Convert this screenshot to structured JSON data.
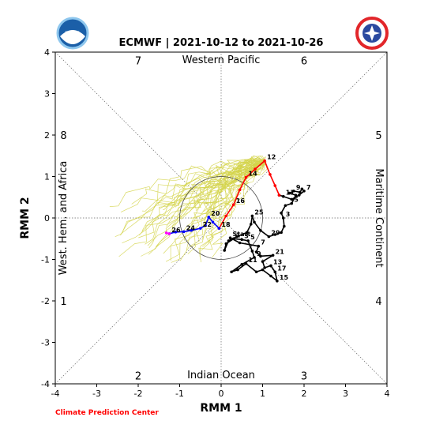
{
  "chart_data": {
    "type": "line",
    "title": "ECMWF | 2021-10-12 to 2021-10-26",
    "xlabel": "RMM 1",
    "ylabel": "RMM 2",
    "xlim": [
      -4,
      4
    ],
    "ylim": [
      -4,
      4
    ],
    "ticks": [
      "-4",
      "-3",
      "-2",
      "-1",
      "0",
      "1",
      "2",
      "3",
      "4"
    ],
    "regions": {
      "top": "Western Pacific",
      "bottom": "Indian Ocean",
      "left": "West. Hem. and Africa",
      "right": "Maritime Continent"
    },
    "phases": [
      {
        "label": "7",
        "x": -2,
        "y": 3.8
      },
      {
        "label": "6",
        "x": 2,
        "y": 3.8
      },
      {
        "label": "8",
        "x": -3.8,
        "y": 2
      },
      {
        "label": "5",
        "x": 3.8,
        "y": 2
      },
      {
        "label": "1",
        "x": -3.8,
        "y": -2
      },
      {
        "label": "4",
        "x": 3.8,
        "y": -2
      },
      {
        "label": "2",
        "x": -2,
        "y": -3.8
      },
      {
        "label": "3",
        "x": 2,
        "y": -3.8
      }
    ],
    "unit_circle_radius": 1,
    "credit": "Climate Prediction Center",
    "series": [
      {
        "color": "#000000",
        "points": [
          {
            "x": 0.22,
            "y": -0.48,
            "label": "Start"
          },
          {
            "x": 0.45,
            "y": -0.6
          },
          {
            "x": 0.9,
            "y": -0.68,
            "label": "7"
          },
          {
            "x": 0.85,
            "y": -0.82
          },
          {
            "x": 0.95,
            "y": -0.92
          },
          {
            "x": 1.25,
            "y": -0.9,
            "label": "21"
          },
          {
            "x": 1.0,
            "y": -1.05
          },
          {
            "x": 1.05,
            "y": -1.2
          },
          {
            "x": 1.2,
            "y": -1.15,
            "label": "13"
          },
          {
            "x": 1.3,
            "y": -1.3,
            "label": "17"
          },
          {
            "x": 1.35,
            "y": -1.52,
            "label": "15"
          },
          {
            "x": 1.2,
            "y": -1.4
          },
          {
            "x": 1.0,
            "y": -1.25
          },
          {
            "x": 0.85,
            "y": -1.3
          },
          {
            "x": 0.6,
            "y": -1.1,
            "label": "11"
          },
          {
            "x": 0.4,
            "y": -1.25
          },
          {
            "x": 0.25,
            "y": -1.3
          },
          {
            "x": 0.5,
            "y": -1.12
          },
          {
            "x": 0.8,
            "y": -0.95,
            "label": "9"
          },
          {
            "x": 0.75,
            "y": -0.8
          },
          {
            "x": 0.65,
            "y": -0.55,
            "label": "5"
          },
          {
            "x": 0.5,
            "y": -0.52,
            "label": "3"
          },
          {
            "x": 0.3,
            "y": -0.5,
            "label": "1"
          },
          {
            "x": 0.12,
            "y": -0.62
          },
          {
            "x": 0.08,
            "y": -0.78
          },
          {
            "x": 0.18,
            "y": -0.55
          },
          {
            "x": 0.38,
            "y": -0.45
          },
          {
            "x": 0.62,
            "y": -0.35
          },
          {
            "x": 0.72,
            "y": -0.15
          },
          {
            "x": 0.75,
            "y": 0.05,
            "label": "25"
          },
          {
            "x": 0.8,
            "y": -0.1
          },
          {
            "x": 0.95,
            "y": -0.3
          },
          {
            "x": 1.15,
            "y": -0.45,
            "label": "29"
          },
          {
            "x": 1.3,
            "y": -0.4
          },
          {
            "x": 1.45,
            "y": -0.35
          },
          {
            "x": 1.52,
            "y": -0.2
          },
          {
            "x": 1.5,
            "y": 0.0,
            "label": "3"
          },
          {
            "x": 1.45,
            "y": 0.12
          },
          {
            "x": 1.55,
            "y": 0.3
          },
          {
            "x": 1.7,
            "y": 0.35,
            "label": "5"
          },
          {
            "x": 1.8,
            "y": 0.55
          },
          {
            "x": 1.65,
            "y": 0.6
          },
          {
            "x": 1.75,
            "y": 0.65,
            "label": "9"
          },
          {
            "x": 1.9,
            "y": 0.62
          },
          {
            "x": 1.95,
            "y": 0.7
          },
          {
            "x": 2.0,
            "y": 0.65,
            "label": "7"
          },
          {
            "x": 1.88,
            "y": 0.55
          },
          {
            "x": 1.7,
            "y": 0.45
          },
          {
            "x": 1.5,
            "y": 0.52,
            "label": "11"
          },
          {
            "x": 1.4,
            "y": 0.55
          }
        ]
      },
      {
        "color": "#ff0000",
        "points": [
          {
            "x": 1.4,
            "y": 0.55
          },
          {
            "x": 1.3,
            "y": 0.78
          },
          {
            "x": 1.18,
            "y": 1.05
          },
          {
            "x": 1.05,
            "y": 1.38,
            "label": "12"
          },
          {
            "x": 0.82,
            "y": 1.18
          },
          {
            "x": 0.6,
            "y": 0.98,
            "label": "14"
          },
          {
            "x": 0.45,
            "y": 0.68
          },
          {
            "x": 0.3,
            "y": 0.32,
            "label": "16"
          },
          {
            "x": 0.12,
            "y": 0.05
          },
          {
            "x": -0.05,
            "y": -0.25,
            "label": "18"
          }
        ]
      },
      {
        "color": "#0000ff",
        "points": [
          {
            "x": -0.05,
            "y": -0.25
          },
          {
            "x": -0.2,
            "y": -0.1
          },
          {
            "x": -0.3,
            "y": 0.02,
            "label": "20"
          },
          {
            "x": -0.38,
            "y": -0.18
          },
          {
            "x": -0.5,
            "y": -0.25,
            "label": "22"
          },
          {
            "x": -0.72,
            "y": -0.3
          },
          {
            "x": -0.9,
            "y": -0.33,
            "label": "24"
          },
          {
            "x": -1.1,
            "y": -0.34
          },
          {
            "x": -1.25,
            "y": -0.38,
            "label": "26"
          }
        ]
      },
      {
        "color": "#ff00ff",
        "points": [
          {
            "x": -1.25,
            "y": -0.38
          },
          {
            "x": -1.32,
            "y": -0.36
          }
        ]
      }
    ],
    "ensemble": {
      "color": "#d4d44a",
      "members": 50,
      "origin": {
        "x": 1.05,
        "y": 1.38
      },
      "endpoint_spread": {
        "x": [
          -2.8,
          -0.2
        ],
        "y": [
          -1.1,
          0.4
        ]
      }
    }
  },
  "logos": {
    "left": {
      "name": "noaa-logo",
      "text": "NOAA"
    },
    "right": {
      "name": "nws-logo",
      "text": "NATIONAL WEATHER SERVICE"
    }
  }
}
